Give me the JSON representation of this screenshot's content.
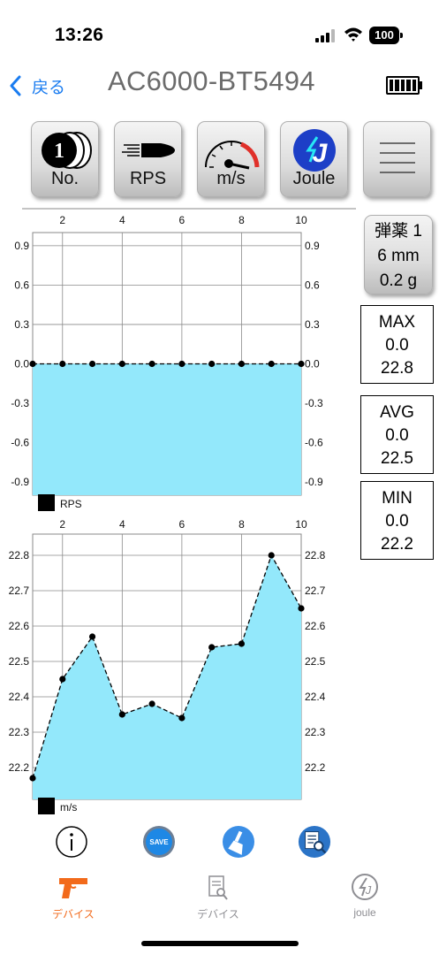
{
  "status_bar": {
    "time": "13:26",
    "battery": "100"
  },
  "nav": {
    "back_label": "戻る",
    "title": "AC6000-BT5494"
  },
  "mode_buttons": [
    "No.",
    "RPS",
    "m/s",
    "Joule"
  ],
  "ammo": {
    "line1": "弾薬 1",
    "line2": "6 mm",
    "line3": "0.2 g"
  },
  "stats": {
    "max": {
      "label": "MAX",
      "rps": "0.0",
      "ms": "22.8"
    },
    "avg": {
      "label": "AVG",
      "rps": "0.0",
      "ms": "22.5"
    },
    "min": {
      "label": "MIN",
      "rps": "0.0",
      "ms": "22.2"
    }
  },
  "chart_data": [
    {
      "type": "area",
      "series": [
        {
          "name": "RPS",
          "values": [
            0,
            0,
            0,
            0,
            0,
            0,
            0,
            0,
            0,
            0
          ]
        }
      ],
      "x": [
        1,
        2,
        3,
        4,
        5,
        6,
        7,
        8,
        9,
        10
      ],
      "x_ticks": [
        "2",
        "4",
        "6",
        "8",
        "10"
      ],
      "y_ticks": [
        "0.9",
        "0.6",
        "0.3",
        "0.0",
        "-0.3",
        "-0.6",
        "-0.9"
      ],
      "xlim": [
        1,
        10
      ],
      "ylim": [
        -1.0,
        1.0
      ],
      "line_style": "dashed",
      "fill_color": "#93e8fb",
      "grid": true,
      "legend": "bottom-left"
    },
    {
      "type": "area",
      "series": [
        {
          "name": "m/s",
          "values": [
            22.17,
            22.45,
            22.57,
            22.35,
            22.38,
            22.34,
            22.54,
            22.55,
            22.8,
            22.65
          ]
        }
      ],
      "x": [
        1,
        2,
        3,
        4,
        5,
        6,
        7,
        8,
        9,
        10
      ],
      "x_ticks": [
        "2",
        "4",
        "6",
        "8",
        "10"
      ],
      "y_ticks": [
        "22.8",
        "22.7",
        "22.6",
        "22.5",
        "22.4",
        "22.3",
        "22.2"
      ],
      "xlim": [
        1,
        10
      ],
      "ylim": [
        22.11,
        22.86
      ],
      "line_style": "dashed",
      "fill_color": "#93e8fb",
      "grid": true,
      "legend": "bottom-left"
    }
  ],
  "tabs": [
    {
      "label": "デバイス",
      "color": "#f26a1b"
    },
    {
      "label": "デバイス",
      "color": "#8e8e93"
    },
    {
      "label": "joule",
      "color": "#8e8e93"
    }
  ],
  "colors": {
    "accent": "#1a7cf0",
    "fill": "#93e8fb",
    "active_tab": "#f26a1b"
  },
  "icons": {
    "actions": [
      "info-icon",
      "save-icon",
      "clear-brush-icon",
      "search-document-icon"
    ],
    "tabs": [
      "pistol-icon",
      "document-search-icon",
      "joule-bolt-icon"
    ]
  }
}
